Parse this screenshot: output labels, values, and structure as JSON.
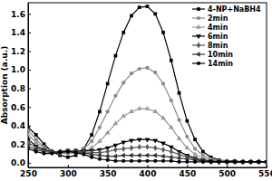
{
  "chart_data": {
    "type": "line",
    "y_label": "Absorption (a.u.)",
    "x": [
      250,
      260,
      270,
      280,
      290,
      300,
      310,
      320,
      330,
      340,
      350,
      360,
      370,
      380,
      390,
      400,
      410,
      420,
      430,
      440,
      450,
      460,
      470,
      480,
      490,
      500,
      510,
      520,
      530,
      540,
      550
    ],
    "xlim": [
      250,
      550
    ],
    "xticks": [
      250,
      300,
      350,
      400,
      450,
      500,
      550
    ],
    "ylim": [
      -0.05,
      1.72
    ],
    "yticks": [
      {
        "value": 0,
        "label": "0.0"
      },
      {
        "value": 0.2,
        "label": "0.2"
      },
      {
        "value": 0.4,
        "label": "0.4"
      },
      {
        "value": 0.6,
        "label": "0.6"
      },
      {
        "value": 0.8,
        "label": "0.8"
      },
      {
        "value": 1.0,
        "label": "1.0"
      },
      {
        "value": 1.2,
        "label": "1.2"
      },
      {
        "value": 1.4,
        "label": "1.4"
      },
      {
        "value": 1.6,
        "label": "1.6"
      }
    ],
    "legend": "upper right",
    "series": [
      {
        "name": "4-NP+NaBH4",
        "color": "#000000",
        "marker": "square",
        "values": [
          0.38,
          0.3,
          0.2,
          0.12,
          0.08,
          0.06,
          0.08,
          0.15,
          0.3,
          0.55,
          0.85,
          1.15,
          1.4,
          1.58,
          1.67,
          1.68,
          1.6,
          1.4,
          1.1,
          0.75,
          0.45,
          0.25,
          0.12,
          0.06,
          0.03,
          0.02,
          0.02,
          0.01,
          0.01,
          0.01,
          0.01
        ]
      },
      {
        "name": "2min",
        "color": "#8a8a8a",
        "marker": "circle",
        "values": [
          0.35,
          0.25,
          0.17,
          0.12,
          0.1,
          0.1,
          0.11,
          0.15,
          0.23,
          0.38,
          0.55,
          0.72,
          0.86,
          0.96,
          1.01,
          1.02,
          0.97,
          0.85,
          0.67,
          0.46,
          0.28,
          0.15,
          0.08,
          0.04,
          0.02,
          0.02,
          0.01,
          0.01,
          0.01,
          0.01,
          0.01
        ]
      },
      {
        "name": "4min",
        "color": "#9a9a9a",
        "marker": "triangle-up",
        "values": [
          0.3,
          0.22,
          0.16,
          0.12,
          0.11,
          0.11,
          0.11,
          0.12,
          0.16,
          0.23,
          0.32,
          0.42,
          0.5,
          0.55,
          0.58,
          0.58,
          0.55,
          0.48,
          0.38,
          0.26,
          0.16,
          0.09,
          0.05,
          0.03,
          0.02,
          0.01,
          0.01,
          0.01,
          0.01,
          0.01,
          0.01
        ]
      },
      {
        "name": "6min",
        "color": "#000000",
        "marker": "triangle-down",
        "values": [
          0.25,
          0.18,
          0.14,
          0.12,
          0.12,
          0.13,
          0.13,
          0.13,
          0.13,
          0.14,
          0.16,
          0.19,
          0.22,
          0.24,
          0.25,
          0.25,
          0.24,
          0.21,
          0.17,
          0.12,
          0.08,
          0.05,
          0.03,
          0.02,
          0.01,
          0.01,
          0.01,
          0.01,
          0.01,
          0.01,
          0.01
        ]
      },
      {
        "name": "8min",
        "color": "#555555",
        "marker": "diamond",
        "values": [
          0.22,
          0.16,
          0.13,
          0.12,
          0.12,
          0.13,
          0.13,
          0.12,
          0.11,
          0.11,
          0.12,
          0.14,
          0.15,
          0.16,
          0.17,
          0.17,
          0.16,
          0.14,
          0.12,
          0.09,
          0.06,
          0.04,
          0.02,
          0.01,
          0.01,
          0.01,
          0.01,
          0.01,
          0.01,
          0.01,
          0.01
        ]
      },
      {
        "name": "10min",
        "color": "#333333",
        "marker": "triangle-left",
        "values": [
          0.18,
          0.14,
          0.12,
          0.11,
          0.12,
          0.12,
          0.12,
          0.11,
          0.09,
          0.08,
          0.07,
          0.07,
          0.08,
          0.08,
          0.08,
          0.08,
          0.08,
          0.07,
          0.06,
          0.05,
          0.04,
          0.03,
          0.02,
          0.01,
          0.01,
          0.01,
          0.01,
          0.01,
          0.01,
          0.01,
          0.01
        ]
      },
      {
        "name": "14min",
        "color": "#000000",
        "marker": "circle",
        "values": [
          0.15,
          0.12,
          0.1,
          0.1,
          0.11,
          0.12,
          0.11,
          0.09,
          0.06,
          0.04,
          0.03,
          0.02,
          0.02,
          0.02,
          0.02,
          0.02,
          0.02,
          0.02,
          0.02,
          0.01,
          0.01,
          0.01,
          0.01,
          0.01,
          0.01,
          0.01,
          0.01,
          0.01,
          0.01,
          0.01,
          0.01
        ]
      }
    ]
  }
}
